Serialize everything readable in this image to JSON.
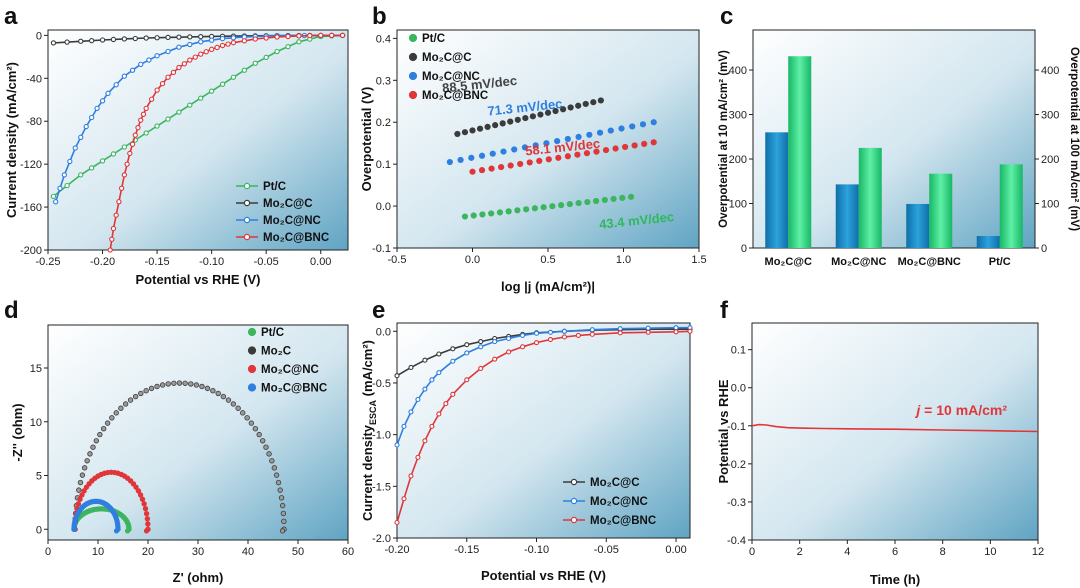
{
  "colors": {
    "ptc": "#3cb55f",
    "mo2c": "#3b3b3b",
    "nc": "#2f7fe0",
    "bnc": "#e0363a",
    "blue_bar": "#1a86c5",
    "green_bar": "#26d07c",
    "left_axis": "#1f8fc6",
    "right_axis": "#22b36a"
  },
  "chart_data": [
    {
      "panel": "a",
      "type": "line",
      "xlabel": "Potential vs RHE (V)",
      "ylabel": "Current density (mA/cm²)",
      "xlim": [
        -0.25,
        0.025
      ],
      "ylim": [
        -200,
        5
      ],
      "xticks": [
        -0.25,
        -0.2,
        -0.15,
        -0.1,
        -0.05,
        0.0
      ],
      "xtick_labels": [
        "-0.25",
        "-0.20",
        "-0.15",
        "-0.10",
        "-0.05",
        "0.00"
      ],
      "yticks": [
        0,
        -40,
        -80,
        -120,
        -160,
        -200
      ],
      "ytick_labels": [
        "0",
        "-40",
        "-80",
        "-120",
        "-160",
        "-200"
      ],
      "legend": [
        "Pt/C",
        "Mo₂C@C",
        "Mo₂C@NC",
        "Mo₂C@BNC"
      ],
      "series": [
        {
          "name": "Pt/C",
          "key": "ptc",
          "x": [
            -0.245,
            -0.22,
            -0.2,
            -0.18,
            -0.16,
            -0.14,
            -0.12,
            -0.1,
            -0.08,
            -0.06,
            -0.04,
            -0.02,
            0.0,
            0.02
          ],
          "y": [
            -150,
            -130,
            -117,
            -104,
            -91,
            -78,
            -65,
            -52,
            -39,
            -26,
            -15,
            -6,
            -1,
            0
          ]
        },
        {
          "name": "Mo₂C@C",
          "key": "mo2c",
          "x": [
            -0.245,
            -0.22,
            -0.2,
            -0.18,
            -0.16,
            -0.14,
            -0.12,
            -0.1,
            -0.08,
            -0.06,
            -0.04,
            -0.02,
            0.0,
            0.02
          ],
          "y": [
            -7,
            -5.5,
            -4.3,
            -3.3,
            -2.5,
            -1.9,
            -1.4,
            -1.0,
            -0.7,
            -0.45,
            -0.25,
            -0.1,
            0,
            0
          ]
        },
        {
          "name": "Mo₂C@NC",
          "key": "nc",
          "x": [
            -0.243,
            -0.235,
            -0.225,
            -0.215,
            -0.205,
            -0.195,
            -0.18,
            -0.165,
            -0.15,
            -0.13,
            -0.11,
            -0.09,
            -0.07,
            -0.05,
            -0.03,
            0.0,
            0.02
          ],
          "y": [
            -155,
            -130,
            -105,
            -85,
            -68,
            -54,
            -38,
            -27,
            -19,
            -11,
            -6,
            -3,
            -1.5,
            -0.7,
            -0.3,
            0,
            0
          ]
        },
        {
          "name": "Mo₂C@BNC",
          "key": "bnc",
          "x": [
            -0.193,
            -0.19,
            -0.185,
            -0.18,
            -0.175,
            -0.17,
            -0.165,
            -0.16,
            -0.15,
            -0.14,
            -0.13,
            -0.12,
            -0.11,
            -0.1,
            -0.09,
            -0.08,
            -0.06,
            -0.04,
            -0.02,
            0.0,
            0.02
          ],
          "y": [
            -200,
            -180,
            -155,
            -130,
            -110,
            -93,
            -79,
            -68,
            -51,
            -39,
            -30,
            -23,
            -17.5,
            -13,
            -9.5,
            -6.8,
            -3.4,
            -1.5,
            -0.5,
            0,
            0
          ]
        }
      ]
    },
    {
      "panel": "b",
      "type": "scatter",
      "xlabel": "log |j (mA/cm²)|",
      "ylabel": "Overpotential (V)",
      "xlim": [
        -0.5,
        1.5
      ],
      "ylim": [
        -0.1,
        0.42
      ],
      "xticks": [
        -0.5,
        0,
        0.5,
        1,
        1.5
      ],
      "xtick_labels": [
        "-0.5",
        "0.0",
        "0.5",
        "1.0",
        "1.5"
      ],
      "yticks": [
        -0.1,
        0,
        0.1,
        0.2,
        0.3,
        0.4
      ],
      "ytick_labels": [
        "-0.1",
        "0.0",
        "0.1",
        "0.2",
        "0.3",
        "0.4"
      ],
      "legend": [
        "Pt/C",
        "Mo₂C@C",
        "Mo₂C@NC",
        "Mo₂C@BNC"
      ],
      "series": [
        {
          "name": "Pt/C",
          "key": "ptc",
          "x0": -0.05,
          "x1": 1.05,
          "y0": -0.025,
          "y1": 0.022,
          "tafel": "43.4 mV/dec"
        },
        {
          "name": "Mo₂C@C",
          "key": "mo2c",
          "x0": -0.1,
          "x1": 0.85,
          "y0": 0.172,
          "y1": 0.252,
          "tafel": "88.5 mV/dec"
        },
        {
          "name": "Mo₂C@NC",
          "key": "nc",
          "x0": -0.15,
          "x1": 1.2,
          "y0": 0.105,
          "y1": 0.2,
          "tafel": "71.3 mV/dec"
        },
        {
          "name": "Mo₂C@BNC",
          "key": "bnc",
          "x0": 0.0,
          "x1": 1.2,
          "y0": 0.082,
          "y1": 0.152,
          "tafel": "58.1 mV/dec"
        }
      ]
    },
    {
      "panel": "c",
      "type": "bar",
      "categories": [
        "Mo₂C@C",
        "Mo₂C@NC",
        "Mo₂C@BNC",
        "Pt/C"
      ],
      "series": [
        {
          "name": "Overpotential at 10 mA/cm² (mV)",
          "key": "blue_bar",
          "values": [
            260,
            143,
            99,
            27
          ]
        },
        {
          "name": "Overpotential at 100 mA/cm² (mV)",
          "key": "green_bar",
          "values": [
            431,
            225,
            167,
            188
          ]
        }
      ],
      "ylabel": "Overpotential at 10 mA/cm² (mV)",
      "y2label": "Overpotential at 100 mA/cm² (mV)",
      "ylim": [
        0,
        490
      ],
      "yticks": [
        0,
        100,
        200,
        300,
        400
      ],
      "ytick_labels": [
        "0",
        "100",
        "200",
        "300",
        "400"
      ]
    },
    {
      "panel": "d",
      "type": "scatter",
      "xlabel": "Z' (ohm)",
      "ylabel": "-Z'' (ohm)",
      "xlim": [
        0,
        60
      ],
      "ylim": [
        -1,
        19
      ],
      "xticks": [
        0,
        10,
        20,
        30,
        40,
        50,
        60
      ],
      "xtick_labels": [
        "0",
        "10",
        "20",
        "30",
        "40",
        "50",
        "60"
      ],
      "yticks": [
        0,
        5,
        10,
        15
      ],
      "ytick_labels": [
        "0",
        "5",
        "10",
        "15"
      ],
      "legend": [
        "Pt/C",
        "Mo₂C",
        "Mo₂C@NC",
        "Mo₂C@BNC"
      ],
      "series": [
        {
          "name": "Pt/C",
          "key": "ptc",
          "x_start": 5.2,
          "x_end": 16.2,
          "peak": 1.9
        },
        {
          "name": "Mo₂C",
          "key": "mo2c",
          "x_start": 5.4,
          "x_end": 47.2,
          "peak": 13.6
        },
        {
          "name": "Mo₂C@NC",
          "key": "bnc",
          "x_start": 5.3,
          "x_end": 20.0,
          "peak": 5.3
        },
        {
          "name": "Mo₂C@BNC",
          "key": "nc",
          "x_start": 5.2,
          "x_end": 14.0,
          "peak": 2.6
        }
      ]
    },
    {
      "panel": "e",
      "type": "line",
      "xlabel": "Potential vs RHE (V)",
      "ylabel": "Current density",
      "ylabel_sub": "ESCA",
      "ylabel_unit": " (mA/cm²)",
      "xlim": [
        -0.2,
        0.01
      ],
      "ylim": [
        -2.0,
        0.08
      ],
      "xticks": [
        -0.2,
        -0.15,
        -0.1,
        -0.05,
        0.0
      ],
      "xtick_labels": [
        "-0.20",
        "-0.15",
        "-0.10",
        "-0.05",
        "0.00"
      ],
      "yticks": [
        0,
        -0.5,
        -1,
        -1.5,
        -2
      ],
      "ytick_labels": [
        "0.0",
        "-0.5",
        "-1.0",
        "-1.5",
        "-2.0"
      ],
      "legend": [
        "Mo₂C@C",
        "Mo₂C@NC",
        "Mo₂C@BNC"
      ],
      "series": [
        {
          "name": "Mo₂C@C",
          "key": "mo2c",
          "x": [
            -0.2,
            -0.19,
            -0.18,
            -0.17,
            -0.16,
            -0.15,
            -0.14,
            -0.13,
            -0.12,
            -0.11,
            -0.1,
            -0.08,
            -0.06,
            -0.04,
            -0.02,
            0.0,
            0.01
          ],
          "y": [
            -0.43,
            -0.35,
            -0.28,
            -0.22,
            -0.17,
            -0.13,
            -0.1,
            -0.07,
            -0.05,
            -0.03,
            -0.015,
            0.0,
            0.01,
            0.015,
            0.02,
            0.02,
            0.02
          ]
        },
        {
          "name": "Mo₂C@NC",
          "key": "nc",
          "x": [
            -0.2,
            -0.195,
            -0.19,
            -0.185,
            -0.18,
            -0.175,
            -0.17,
            -0.16,
            -0.15,
            -0.14,
            -0.13,
            -0.12,
            -0.11,
            -0.1,
            -0.09,
            -0.08,
            -0.06,
            -0.04,
            -0.02,
            0.0,
            0.01
          ],
          "y": [
            -1.1,
            -0.92,
            -0.78,
            -0.66,
            -0.56,
            -0.47,
            -0.4,
            -0.29,
            -0.21,
            -0.15,
            -0.1,
            -0.07,
            -0.04,
            -0.02,
            -0.01,
            0.0,
            0.015,
            0.025,
            0.03,
            0.035,
            0.035
          ]
        },
        {
          "name": "Mo₂C@BNC",
          "key": "bnc",
          "x": [
            -0.2,
            -0.195,
            -0.19,
            -0.185,
            -0.18,
            -0.175,
            -0.17,
            -0.165,
            -0.16,
            -0.15,
            -0.14,
            -0.13,
            -0.12,
            -0.11,
            -0.1,
            -0.09,
            -0.08,
            -0.07,
            -0.06,
            -0.04,
            -0.02,
            0.0,
            0.01
          ],
          "y": [
            -1.85,
            -1.62,
            -1.4,
            -1.22,
            -1.06,
            -0.92,
            -0.8,
            -0.7,
            -0.61,
            -0.47,
            -0.36,
            -0.27,
            -0.2,
            -0.15,
            -0.11,
            -0.08,
            -0.055,
            -0.04,
            -0.03,
            -0.015,
            -0.01,
            -0.005,
            0.0
          ]
        }
      ]
    },
    {
      "panel": "f",
      "type": "line",
      "xlabel": "Time (h)",
      "ylabel": "Potential vs RHE",
      "xlim": [
        0,
        12
      ],
      "ylim": [
        -0.4,
        0.17
      ],
      "xticks": [
        0,
        2,
        4,
        6,
        8,
        10,
        12
      ],
      "xtick_labels": [
        "0",
        "2",
        "4",
        "6",
        "8",
        "10",
        "12"
      ],
      "yticks": [
        0.1,
        0,
        -0.1,
        -0.2,
        -0.3,
        -0.4
      ],
      "ytick_labels": [
        "0.1",
        "0.0",
        "-0.1",
        "-0.2",
        "-0.3",
        "-0.4"
      ],
      "annotation_italic": "j",
      "annotation_rest": " = 10 mA/cm²",
      "series": [
        {
          "name": "j = 10 mA/cm²",
          "key": "bnc",
          "x": [
            0,
            0.3,
            0.6,
            1.0,
            1.5,
            2,
            3,
            4,
            6,
            8,
            10,
            12
          ],
          "y": [
            -0.1,
            -0.097,
            -0.098,
            -0.102,
            -0.105,
            -0.106,
            -0.107,
            -0.108,
            -0.109,
            -0.111,
            -0.113,
            -0.115
          ]
        }
      ]
    }
  ],
  "panel_labels": [
    "a",
    "b",
    "c",
    "d",
    "e",
    "f"
  ]
}
